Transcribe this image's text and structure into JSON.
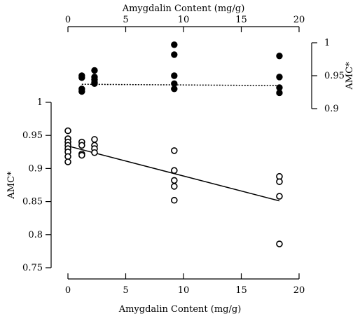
{
  "chart_data": [
    {
      "type": "scatter",
      "panel": "top",
      "xlabel": "Amygdalin Content (mg/g)",
      "ylabel": "AMC*",
      "x_axis_position": "top",
      "y_axis_position": "right",
      "xlim": [
        0,
        20
      ],
      "ylim": [
        0.9,
        1
      ],
      "xticks": [
        "0",
        "5",
        "10",
        "15",
        "20"
      ],
      "yticks": [
        "0.9",
        "0.95",
        "1"
      ],
      "grid": false,
      "series": [
        {
          "marker": "filled-circle",
          "points": [
            [
              1.2,
              0.947
            ],
            [
              1.2,
              0.95
            ],
            [
              1.2,
              0.93
            ],
            [
              1.2,
              0.926
            ],
            [
              2.3,
              0.958
            ],
            [
              2.3,
              0.948
            ],
            [
              2.3,
              0.944
            ],
            [
              2.3,
              0.94
            ],
            [
              2.3,
              0.938
            ],
            [
              9.2,
              0.982
            ],
            [
              9.2,
              0.95
            ],
            [
              9.2,
              0.938
            ],
            [
              9.2,
              0.93
            ],
            [
              9.2,
              0.997
            ],
            [
              18.3,
              0.98
            ],
            [
              18.3,
              0.948
            ],
            [
              18.3,
              0.932
            ],
            [
              18.3,
              0.924
            ]
          ],
          "fit": {
            "style": "dotted",
            "x": [
              1.2,
              18.3
            ],
            "y": [
              0.937,
              0.935
            ]
          }
        }
      ]
    },
    {
      "type": "scatter",
      "panel": "bottom",
      "xlabel": "Amygdalin Content (mg/g)",
      "ylabel": "AMC*",
      "xlim": [
        0,
        20
      ],
      "ylim": [
        0.75,
        1
      ],
      "xticks": [
        "0",
        "5",
        "10",
        "15",
        "20"
      ],
      "yticks": [
        "0.75",
        "0.8",
        "0.85",
        "0.9",
        "0.95",
        "1"
      ],
      "grid": false,
      "series": [
        {
          "marker": "open-circle",
          "points": [
            [
              0,
              0.957
            ],
            [
              0,
              0.945
            ],
            [
              0,
              0.94
            ],
            [
              0,
              0.935
            ],
            [
              0,
              0.93
            ],
            [
              0,
              0.925
            ],
            [
              0,
              0.918
            ],
            [
              0,
              0.91
            ],
            [
              1.2,
              0.94
            ],
            [
              1.2,
              0.935
            ],
            [
              1.2,
              0.922
            ],
            [
              1.2,
              0.92
            ],
            [
              2.3,
              0.944
            ],
            [
              2.3,
              0.935
            ],
            [
              2.3,
              0.93
            ],
            [
              2.3,
              0.924
            ],
            [
              9.2,
              0.927
            ],
            [
              9.2,
              0.897
            ],
            [
              9.2,
              0.882
            ],
            [
              9.2,
              0.873
            ],
            [
              9.2,
              0.852
            ],
            [
              18.3,
              0.888
            ],
            [
              18.3,
              0.88
            ],
            [
              18.3,
              0.858
            ],
            [
              18.3,
              0.786
            ]
          ],
          "fit": {
            "style": "solid",
            "x": [
              0,
              18.3
            ],
            "y": [
              0.934,
              0.851
            ]
          }
        }
      ]
    }
  ]
}
